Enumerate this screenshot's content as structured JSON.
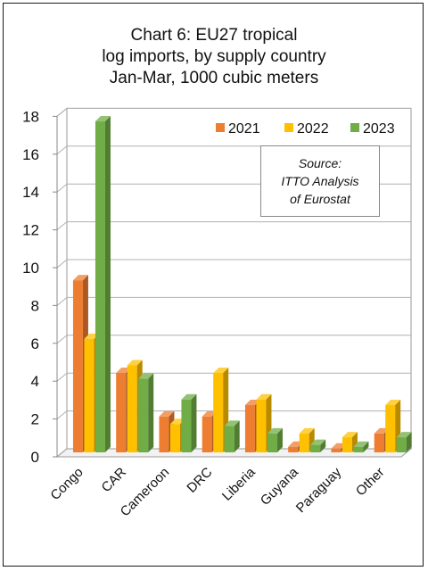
{
  "chart_data": {
    "type": "bar",
    "title_lines": [
      "Chart 6: EU27 tropical",
      "log imports, by supply country",
      "Jan-Mar, 1000 cubic meters"
    ],
    "categories": [
      "Congo",
      "CAR",
      "Cameroon",
      "DRC",
      "Liberia",
      "Guyana",
      "Paraguay",
      "Other"
    ],
    "series": [
      {
        "name": "2021",
        "color": "#ED7D31",
        "values": [
          9.1,
          4.2,
          1.9,
          1.9,
          2.5,
          0.3,
          0.2,
          1.0
        ]
      },
      {
        "name": "2022",
        "color": "#FFC000",
        "values": [
          6.0,
          4.6,
          1.5,
          4.2,
          2.8,
          1.0,
          0.8,
          2.5
        ]
      },
      {
        "name": "2023",
        "color": "#70AD47",
        "values": [
          17.5,
          3.9,
          2.8,
          1.4,
          1.0,
          0.4,
          0.3,
          0.8
        ]
      }
    ],
    "yticks": [
      "0",
      "2",
      "4",
      "6",
      "8",
      "10",
      "12",
      "14",
      "16",
      "18"
    ],
    "ylim": [
      0,
      18
    ],
    "grid": true,
    "legend_position": "top-right",
    "source_note": [
      "Source:",
      "ITTO  Analysis",
      "of Eurostat"
    ]
  }
}
